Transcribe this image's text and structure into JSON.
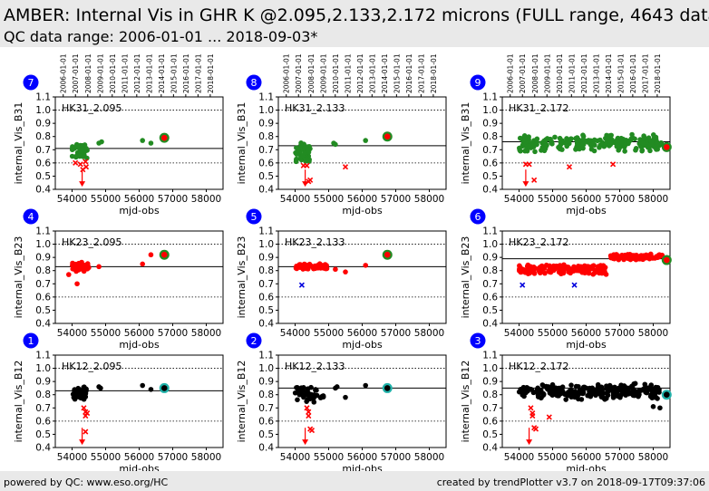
{
  "header": {
    "title": "AMBER: Internal Vis in GHR K @2.095,2.133,2.172 microns (FULL range, 4643 data",
    "subtitle": "QC data range: 2006-01-01 ... 2018-09-03*"
  },
  "footer": {
    "left": "powered by QC: www.eso.org/HC",
    "right": "created by trendPlotter v3.7 on 2018-09-17T09:37:06"
  },
  "colors": {
    "badge": "#0000ff",
    "green": "#228B22",
    "red": "#ff0000",
    "black": "#000000",
    "blue": "#0000dd",
    "cyan": "#20b2aa"
  },
  "date_ticks": [
    "2006-01-01",
    "2007-01-01",
    "2008-01-01",
    "2009-01-01",
    "2010-01-01",
    "2011-01-01",
    "2012-01-01",
    "2013-01-01",
    "2014-01-01",
    "2015-01-01",
    "2016-01-01",
    "2017-01-01",
    "2018-01-01"
  ],
  "chart_data": [
    {
      "badge": "7",
      "label": "HK31_2.095",
      "ylabel": "internal_Vis_B31",
      "xlabel": "mjd-obs",
      "type": "scatter",
      "xlim": [
        53500,
        58500
      ],
      "ylim": [
        0.4,
        1.1
      ],
      "xticks": [
        54000,
        55000,
        56000,
        57000,
        58000
      ],
      "yticks": [
        0.4,
        0.5,
        0.6,
        0.7,
        0.8,
        0.9,
        1.0,
        1.1
      ],
      "ref_line": 0.71,
      "dotted_lines": [
        0.6,
        1.0
      ],
      "color": "green",
      "series": [
        {
          "kind": "band",
          "x0": 54000,
          "x1": 54450,
          "ymin": 0.62,
          "ymax": 0.76,
          "n": 40,
          "seed": 1
        },
        {
          "kind": "points",
          "x": [
            54800,
            54880,
            56100,
            56350
          ],
          "y": [
            0.75,
            0.76,
            0.77,
            0.75
          ]
        },
        {
          "kind": "cross",
          "color": "red",
          "x": [
            54100,
            54250,
            54320,
            54400,
            54420
          ],
          "y": [
            0.6,
            0.59,
            0.55,
            0.61,
            0.57
          ]
        },
        {
          "kind": "arrow",
          "color": "red",
          "x": 54300,
          "y": 0.44
        },
        {
          "kind": "last",
          "color": "red",
          "ring": "green",
          "x": 56750,
          "y": 0.79
        }
      ]
    },
    {
      "badge": "8",
      "label": "HK31_2.133",
      "ylabel": "internal_Vis_B31",
      "xlabel": "mjd-obs",
      "type": "scatter",
      "xlim": [
        53500,
        58500
      ],
      "ylim": [
        0.4,
        1.1
      ],
      "xticks": [
        54000,
        55000,
        56000,
        57000,
        58000
      ],
      "yticks": [
        0.4,
        0.5,
        0.6,
        0.7,
        0.8,
        0.9,
        1.0,
        1.1
      ],
      "ref_line": 0.73,
      "dotted_lines": [
        0.6,
        1.0
      ],
      "color": "green",
      "series": [
        {
          "kind": "band",
          "x0": 54000,
          "x1": 54500,
          "ymin": 0.6,
          "ymax": 0.76,
          "n": 45,
          "seed": 2
        },
        {
          "kind": "points",
          "x": [
            55150,
            55200,
            56100
          ],
          "y": [
            0.75,
            0.74,
            0.77
          ]
        },
        {
          "kind": "cross",
          "color": "red",
          "x": [
            54250,
            54350,
            54400,
            54450,
            55500
          ],
          "y": [
            0.58,
            0.58,
            0.46,
            0.47,
            0.57
          ]
        },
        {
          "kind": "arrow",
          "color": "red",
          "x": 54300,
          "y": 0.44
        },
        {
          "kind": "last",
          "color": "red",
          "ring": "green",
          "x": 56750,
          "y": 0.8
        }
      ]
    },
    {
      "badge": "9",
      "label": "HK31_2.172",
      "ylabel": "internal_Vis_B31",
      "xlabel": "mjd-obs",
      "type": "scatter",
      "xlim": [
        53500,
        58500
      ],
      "ylim": [
        0.4,
        1.1
      ],
      "xticks": [
        54000,
        55000,
        56000,
        57000,
        58000
      ],
      "yticks": [
        0.4,
        0.5,
        0.6,
        0.7,
        0.8,
        0.9,
        1.0,
        1.1
      ],
      "ref_line": 0.76,
      "dotted_lines": [
        0.6,
        1.0
      ],
      "color": "green",
      "series": [
        {
          "kind": "band",
          "x0": 54000,
          "x1": 58300,
          "ymin": 0.68,
          "ymax": 0.82,
          "n": 230,
          "seed": 3
        },
        {
          "kind": "cross",
          "color": "red",
          "x": [
            54200,
            54300,
            54450,
            55500,
            56800
          ],
          "y": [
            0.59,
            0.59,
            0.47,
            0.57,
            0.59
          ]
        },
        {
          "kind": "arrow",
          "color": "red",
          "x": 54200,
          "y": 0.44
        },
        {
          "kind": "last",
          "color": "red",
          "ring": "green",
          "x": 58400,
          "y": 0.72
        }
      ]
    },
    {
      "badge": "4",
      "label": "HK23_2.095",
      "ylabel": "internal_Vis_B23",
      "xlabel": "mjd-obs",
      "type": "scatter",
      "xlim": [
        53500,
        58500
      ],
      "ylim": [
        0.4,
        1.1
      ],
      "xticks": [
        54000,
        55000,
        56000,
        57000,
        58000
      ],
      "yticks": [
        0.4,
        0.5,
        0.6,
        0.7,
        0.8,
        0.9,
        1.0,
        1.1
      ],
      "ref_line": 0.83,
      "dotted_lines": [
        0.6,
        1.0
      ],
      "color": "red",
      "series": [
        {
          "kind": "band",
          "x0": 54000,
          "x1": 54500,
          "ymin": 0.79,
          "ymax": 0.87,
          "n": 40,
          "seed": 4
        },
        {
          "kind": "points",
          "x": [
            53900,
            54150,
            54800,
            56100,
            56350
          ],
          "y": [
            0.77,
            0.7,
            0.83,
            0.85,
            0.92
          ]
        },
        {
          "kind": "last",
          "color": "red",
          "ring": "green",
          "x": 56750,
          "y": 0.92
        }
      ]
    },
    {
      "badge": "5",
      "label": "HK23_2.133",
      "ylabel": "internal_Vis_B23",
      "xlabel": "mjd-obs",
      "type": "scatter",
      "xlim": [
        53500,
        58500
      ],
      "ylim": [
        0.4,
        1.1
      ],
      "xticks": [
        54000,
        55000,
        56000,
        57000,
        58000
      ],
      "yticks": [
        0.4,
        0.5,
        0.6,
        0.7,
        0.8,
        0.9,
        1.0,
        1.1
      ],
      "ref_line": 0.83,
      "dotted_lines": [
        0.6,
        1.0
      ],
      "color": "red",
      "series": [
        {
          "kind": "band",
          "x0": 54000,
          "x1": 55000,
          "ymin": 0.8,
          "ymax": 0.86,
          "n": 60,
          "seed": 5
        },
        {
          "kind": "points",
          "x": [
            55200,
            55500,
            56100
          ],
          "y": [
            0.81,
            0.79,
            0.84
          ]
        },
        {
          "kind": "cross",
          "color": "blue",
          "x": [
            54200
          ],
          "y": [
            0.69
          ]
        },
        {
          "kind": "last",
          "color": "red",
          "ring": "green",
          "x": 56750,
          "y": 0.92
        }
      ]
    },
    {
      "badge": "6",
      "label": "HK23_2.172",
      "ylabel": "internal_Vis_B23",
      "xlabel": "mjd-obs",
      "type": "scatter",
      "xlim": [
        53500,
        58500
      ],
      "ylim": [
        0.4,
        1.1
      ],
      "xticks": [
        54000,
        55000,
        56000,
        57000,
        58000
      ],
      "yticks": [
        0.4,
        0.5,
        0.6,
        0.7,
        0.8,
        0.9,
        1.0,
        1.1
      ],
      "ref_line": 0.89,
      "dotted_lines": [
        0.6,
        1.0
      ],
      "color": "red",
      "series": [
        {
          "kind": "band",
          "x0": 54000,
          "x1": 56600,
          "ymin": 0.77,
          "ymax": 0.85,
          "n": 190,
          "seed": 6
        },
        {
          "kind": "band",
          "x0": 56700,
          "x1": 58300,
          "ymin": 0.88,
          "ymax": 0.93,
          "n": 110,
          "seed": 7
        },
        {
          "kind": "cross",
          "color": "blue",
          "x": [
            54100,
            55650
          ],
          "y": [
            0.69,
            0.69
          ]
        },
        {
          "kind": "last",
          "color": "red",
          "ring": "green",
          "x": 58400,
          "y": 0.88
        }
      ]
    },
    {
      "badge": "1",
      "label": "HK12_2.095",
      "ylabel": "internal_Vis_B12",
      "xlabel": "mjd-obs",
      "type": "scatter",
      "xlim": [
        53500,
        58500
      ],
      "ylim": [
        0.4,
        1.1
      ],
      "xticks": [
        54000,
        55000,
        56000,
        57000,
        58000
      ],
      "yticks": [
        0.4,
        0.5,
        0.6,
        0.7,
        0.8,
        0.9,
        1.0,
        1.1
      ],
      "ref_line": 0.83,
      "dotted_lines": [
        0.6,
        1.0
      ],
      "color": "black",
      "series": [
        {
          "kind": "band",
          "x0": 54000,
          "x1": 54450,
          "ymin": 0.74,
          "ymax": 0.87,
          "n": 40,
          "seed": 8
        },
        {
          "kind": "points",
          "x": [
            54800,
            54850,
            56100,
            56350
          ],
          "y": [
            0.86,
            0.85,
            0.87,
            0.84
          ]
        },
        {
          "kind": "cross",
          "color": "red",
          "x": [
            54350,
            54400,
            54400,
            54400,
            54450
          ],
          "y": [
            0.7,
            0.67,
            0.64,
            0.52,
            0.66
          ]
        },
        {
          "kind": "arrow",
          "color": "red",
          "x": 54300,
          "y": 0.44
        },
        {
          "kind": "last",
          "color": "black",
          "ring": "cyan",
          "x": 56750,
          "y": 0.85
        }
      ]
    },
    {
      "badge": "2",
      "label": "HK12_2.133",
      "ylabel": "internal_Vis_B12",
      "xlabel": "mjd-obs",
      "type": "scatter",
      "xlim": [
        53500,
        58500
      ],
      "ylim": [
        0.4,
        1.1
      ],
      "xticks": [
        54000,
        55000,
        56000,
        57000,
        58000
      ],
      "yticks": [
        0.4,
        0.5,
        0.6,
        0.7,
        0.8,
        0.9,
        1.0,
        1.1
      ],
      "ref_line": 0.85,
      "dotted_lines": [
        0.6,
        1.0
      ],
      "color": "black",
      "series": [
        {
          "kind": "band",
          "x0": 54000,
          "x1": 54850,
          "ymin": 0.74,
          "ymax": 0.87,
          "n": 45,
          "seed": 9
        },
        {
          "kind": "points",
          "x": [
            55200,
            55250,
            55500,
            56100
          ],
          "y": [
            0.85,
            0.86,
            0.78,
            0.87
          ]
        },
        {
          "kind": "cross",
          "color": "red",
          "x": [
            54350,
            54400,
            54400,
            54450,
            54500
          ],
          "y": [
            0.7,
            0.67,
            0.64,
            0.54,
            0.53
          ]
        },
        {
          "kind": "arrow",
          "color": "red",
          "x": 54300,
          "y": 0.44
        },
        {
          "kind": "last",
          "color": "black",
          "ring": "cyan",
          "x": 56750,
          "y": 0.85
        }
      ]
    },
    {
      "badge": "3",
      "label": "HK12_2.172",
      "ylabel": "internal_Vis_B12",
      "xlabel": "mjd-obs",
      "type": "scatter",
      "xlim": [
        53500,
        58500
      ],
      "ylim": [
        0.4,
        1.1
      ],
      "xticks": [
        54000,
        55000,
        56000,
        57000,
        58000
      ],
      "yticks": [
        0.4,
        0.5,
        0.6,
        0.7,
        0.8,
        0.9,
        1.0,
        1.1
      ],
      "ref_line": 0.85,
      "dotted_lines": [
        0.6,
        1.0
      ],
      "color": "black",
      "series": [
        {
          "kind": "band",
          "x0": 54000,
          "x1": 58200,
          "ymin": 0.76,
          "ymax": 0.89,
          "n": 230,
          "seed": 10
        },
        {
          "kind": "points",
          "x": [
            58000,
            58200
          ],
          "y": [
            0.71,
            0.7
          ]
        },
        {
          "kind": "cross",
          "color": "red",
          "x": [
            54350,
            54400,
            54400,
            54450,
            54500,
            54900
          ],
          "y": [
            0.7,
            0.66,
            0.64,
            0.55,
            0.54,
            0.63
          ]
        },
        {
          "kind": "arrow",
          "color": "red",
          "x": 54300,
          "y": 0.44
        },
        {
          "kind": "last",
          "color": "black",
          "ring": "cyan",
          "x": 58400,
          "y": 0.8
        }
      ]
    }
  ]
}
